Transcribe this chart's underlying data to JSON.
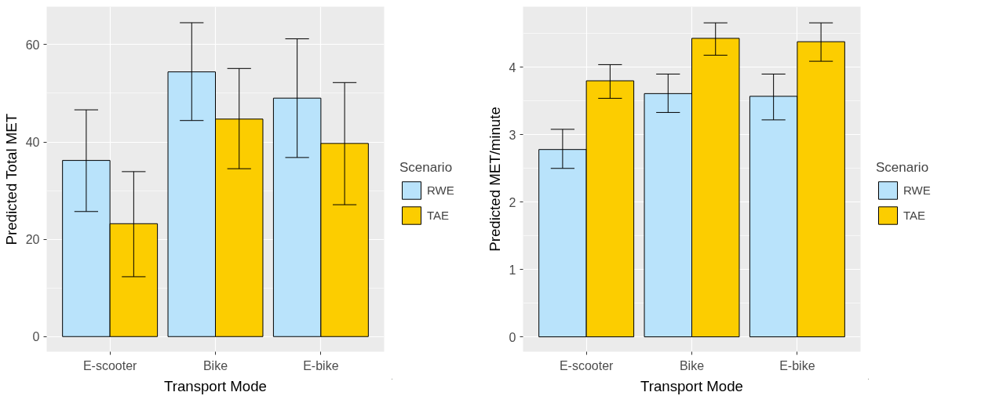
{
  "chart_data": [
    {
      "type": "bar",
      "xlabel": "Transport Mode",
      "ylabel": "Predicted Total MET",
      "legend_title": "Scenario",
      "legend": "right",
      "grid": true,
      "categories": [
        "E-scooter",
        "Bike",
        "E-bike"
      ],
      "ylim": [
        -3.1,
        67.8
      ],
      "yticks": [
        0,
        20,
        40,
        60
      ],
      "series": [
        {
          "name": "RWE",
          "color": "#b9e3fb",
          "values": [
            36.2,
            54.4,
            49.0
          ],
          "errors": [
            [
              25.7,
              46.6
            ],
            [
              44.4,
              64.5
            ],
            [
              36.8,
              61.2
            ]
          ]
        },
        {
          "name": "TAE",
          "color": "#fccd00",
          "values": [
            23.2,
            44.7,
            39.7
          ],
          "errors": [
            [
              12.3,
              33.9
            ],
            [
              34.5,
              55.1
            ],
            [
              27.1,
              52.2
            ]
          ]
        }
      ]
    },
    {
      "type": "bar",
      "xlabel": "Transport Mode",
      "ylabel": "Predicted MET/minute",
      "legend_title": "Scenario",
      "legend": "right",
      "grid": true,
      "categories": [
        "E-scooter",
        "Bike",
        "E-bike"
      ],
      "ylim": [
        -0.22,
        4.9
      ],
      "yticks": [
        0,
        1,
        2,
        3,
        4
      ],
      "series": [
        {
          "name": "RWE",
          "color": "#b9e3fb",
          "values": [
            2.78,
            3.61,
            3.57
          ],
          "errors": [
            [
              2.5,
              3.08
            ],
            [
              3.33,
              3.9
            ],
            [
              3.22,
              3.9
            ]
          ]
        },
        {
          "name": "TAE",
          "color": "#fccd00",
          "values": [
            3.8,
            4.43,
            4.38
          ],
          "errors": [
            [
              3.54,
              4.04
            ],
            [
              4.18,
              4.66
            ],
            [
              4.09,
              4.66
            ]
          ]
        }
      ]
    }
  ]
}
